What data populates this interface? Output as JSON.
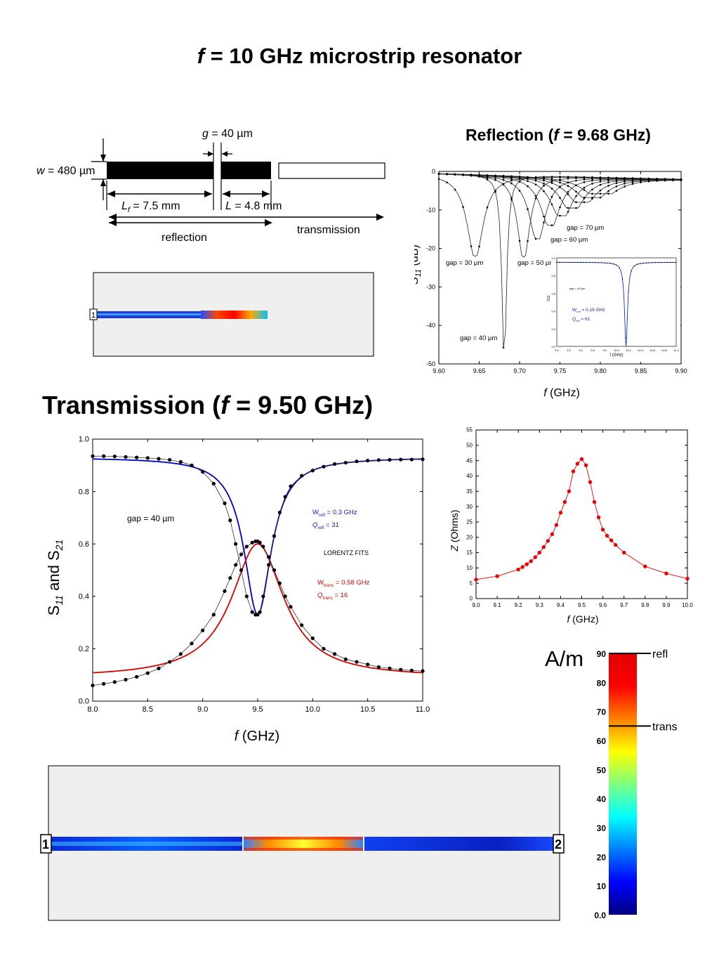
{
  "title": {
    "italic": "f",
    "rest": " = 10 GHz microstrip resonator"
  },
  "reflection_title": {
    "pre": "Reflection (",
    "italic": "f",
    "post": " = 9.68 GHz)"
  },
  "transmission_title": {
    "pre": "Transmission (",
    "italic": "f",
    "post": " = 9.50 GHz)"
  },
  "diagram": {
    "gap_label": {
      "italic": "g",
      "rest": " = 40 µm"
    },
    "width_label": {
      "italic": "w",
      "rest": " = 480 µm"
    },
    "lf_label": {
      "italic": "L",
      "sub": "f",
      "rest": " = 7.5 mm"
    },
    "l_label": {
      "italic": "L",
      "rest": " = 4.8 mm"
    },
    "reflection": "reflection",
    "transmission": "transmission",
    "port1": "1",
    "port2": "2"
  },
  "colorbar": {
    "unit": "A/m",
    "ticks": [
      "90",
      "80",
      "70",
      "60",
      "50",
      "40",
      "30",
      "20",
      "10",
      "0.0"
    ],
    "markers": [
      {
        "label": "refl",
        "value": 90
      },
      {
        "label": "trans",
        "value": 65
      }
    ],
    "colors": [
      "#00007f",
      "#0000ff",
      "#007fff",
      "#00ffff",
      "#7fff7f",
      "#ffff00",
      "#ff7f00",
      "#ff0000",
      "#e00000"
    ]
  },
  "chart_data": [
    {
      "type": "line",
      "title": "Reflection (f = 9.68 GHz)",
      "xlabel": "f (GHz)",
      "ylabel": "S11 (dB)",
      "xlim": [
        9.6,
        9.9
      ],
      "ylim": [
        -50,
        0
      ],
      "xticks": [
        "9.60",
        "9.65",
        "9.70",
        "9.75",
        "9.80",
        "9.85",
        "9.90"
      ],
      "yticks": [
        "0",
        "-10",
        "-20",
        "-30",
        "-40",
        "-50"
      ],
      "series": [
        {
          "name": "gap = 30 µm",
          "f0": 9.645,
          "min": -22,
          "width": 0.012
        },
        {
          "name": "gap = 40 µm",
          "f0": 9.681,
          "min": -48.5,
          "width": 0.0035
        },
        {
          "name": "gap = 50 µm",
          "f0": 9.705,
          "min": -22.3,
          "width": 0.009
        },
        {
          "name": "gap = 60 µm",
          "f0": 9.722,
          "min": -17.5,
          "width": 0.012
        },
        {
          "name": "gap = 70 µm",
          "f0": 9.738,
          "min": -14,
          "width": 0.014
        },
        {
          "name": "",
          "f0": 9.752,
          "min": -11.5,
          "width": 0.016
        },
        {
          "name": "",
          "f0": 9.765,
          "min": -9.5,
          "width": 0.018
        },
        {
          "name": "",
          "f0": 9.777,
          "min": -8,
          "width": 0.02
        },
        {
          "name": "",
          "f0": 9.789,
          "min": -6.8,
          "width": 0.022
        },
        {
          "name": "",
          "f0": 9.8,
          "min": -5.8,
          "width": 0.024
        }
      ],
      "inset": {
        "ylabel": "S11",
        "xlabel": "f (GHz)",
        "note": "gap = 40 µm",
        "w_label": {
          "pre": "W",
          "sub": "refl",
          "post": " = 0.16 GHz"
        },
        "q_label": {
          "pre": "Q",
          "sub": "refl",
          "post": " = 61"
        },
        "xticks": [
          "9.0",
          "9.2",
          "9.4",
          "9.6",
          "9.8",
          "10.0",
          "10.2",
          "10.4",
          "10.6",
          "10.8",
          "11.0"
        ],
        "yticks": [
          "1.0",
          "0.8",
          "0.6",
          "0.4",
          "0.2",
          "0.0"
        ]
      }
    },
    {
      "type": "line",
      "title": "Transmission (f = 9.50 GHz)",
      "xlabel": "f (GHz)",
      "ylabel": "S11 and S21",
      "xlim": [
        8.0,
        11.0
      ],
      "ylim": [
        0.0,
        1.0
      ],
      "xticks": [
        "8.0",
        "8.5",
        "9.0",
        "9.5",
        "10.0",
        "10.5",
        "11.0"
      ],
      "yticks": [
        "0.0",
        "0.2",
        "0.4",
        "0.6",
        "0.8",
        "1.0"
      ],
      "annotations": {
        "gap": "gap = 40 µm",
        "fits": "LORENTZ FITS",
        "w_refl": {
          "pre": "W",
          "sub": "refl",
          "post": " = 0.3 GHz"
        },
        "q_refl": {
          "pre": "Q",
          "sub": "refl",
          "post": " = 31"
        },
        "w_trans": {
          "pre": "W",
          "sub": "trans",
          "post": " = 0.58 GHz"
        },
        "q_trans": {
          "pre": "Q",
          "sub": "trans",
          "post": " = 16"
        }
      },
      "fits": {
        "s11": {
          "color": "#0000cc",
          "base": 0.93,
          "depth": 0.6,
          "f0": 9.5,
          "hw": 0.15
        },
        "s21": {
          "color": "#dd0000",
          "base": 0.09,
          "peak": 0.51,
          "f0": 9.5,
          "hw": 0.29
        }
      },
      "s11_points": {
        "x": [
          8.0,
          8.1,
          8.2,
          8.3,
          8.4,
          8.5,
          8.6,
          8.7,
          8.8,
          8.9,
          9.0,
          9.1,
          9.2,
          9.25,
          9.3,
          9.35,
          9.4,
          9.45,
          9.48,
          9.5,
          9.52,
          9.55,
          9.6,
          9.65,
          9.7,
          9.75,
          9.8,
          9.9,
          10.0,
          10.1,
          10.2,
          10.3,
          10.4,
          10.5,
          10.6,
          10.7,
          10.8,
          10.9,
          11.0
        ],
        "y": [
          0.935,
          0.935,
          0.934,
          0.932,
          0.93,
          0.928,
          0.925,
          0.921,
          0.913,
          0.9,
          0.875,
          0.83,
          0.755,
          0.69,
          0.6,
          0.5,
          0.4,
          0.34,
          0.33,
          0.33,
          0.34,
          0.4,
          0.52,
          0.63,
          0.72,
          0.78,
          0.82,
          0.86,
          0.88,
          0.895,
          0.905,
          0.91,
          0.915,
          0.918,
          0.92,
          0.921,
          0.922,
          0.922,
          0.923
        ]
      },
      "s21_points": {
        "x": [
          8.0,
          8.1,
          8.2,
          8.3,
          8.4,
          8.5,
          8.6,
          8.7,
          8.8,
          8.9,
          9.0,
          9.1,
          9.2,
          9.25,
          9.3,
          9.35,
          9.4,
          9.45,
          9.48,
          9.5,
          9.52,
          9.55,
          9.6,
          9.65,
          9.7,
          9.75,
          9.8,
          9.9,
          10.0,
          10.1,
          10.2,
          10.3,
          10.4,
          10.5,
          10.6,
          10.7,
          10.8,
          10.9,
          11.0
        ],
        "y": [
          0.06,
          0.066,
          0.073,
          0.082,
          0.093,
          0.107,
          0.125,
          0.15,
          0.18,
          0.22,
          0.27,
          0.33,
          0.42,
          0.47,
          0.52,
          0.56,
          0.59,
          0.605,
          0.61,
          0.61,
          0.605,
          0.59,
          0.55,
          0.5,
          0.45,
          0.4,
          0.36,
          0.29,
          0.24,
          0.2,
          0.18,
          0.16,
          0.15,
          0.14,
          0.13,
          0.125,
          0.12,
          0.117,
          0.115
        ]
      }
    },
    {
      "type": "line",
      "xlabel": "f (GHz)",
      "ylabel": "Z (Ohms)",
      "xlim": [
        9.0,
        10.0
      ],
      "ylim": [
        0,
        55
      ],
      "xticks": [
        "9.0",
        "9.1",
        "9.2",
        "9.3",
        "9.4",
        "9.5",
        "9.6",
        "9.7",
        "9.8",
        "9.9",
        "10.0"
      ],
      "yticks": [
        "0",
        "5",
        "10",
        "15",
        "20",
        "25",
        "30",
        "35",
        "40",
        "45",
        "50",
        "55"
      ],
      "x": [
        9.0,
        9.1,
        9.2,
        9.22,
        9.24,
        9.26,
        9.28,
        9.3,
        9.32,
        9.34,
        9.36,
        9.38,
        9.4,
        9.42,
        9.44,
        9.46,
        9.48,
        9.5,
        9.52,
        9.54,
        9.56,
        9.58,
        9.6,
        9.62,
        9.64,
        9.66,
        9.7,
        9.8,
        9.9,
        10.0
      ],
      "y": [
        6.2,
        7.3,
        9.5,
        10.3,
        11.2,
        12.2,
        13.5,
        15,
        16.8,
        18.8,
        21,
        24,
        28,
        31.5,
        35,
        41.5,
        44,
        45.5,
        43.5,
        38,
        31.5,
        26.5,
        22.5,
        20.5,
        19,
        17.5,
        15,
        10.5,
        8.2,
        6.5
      ],
      "color": "#ee0000"
    }
  ]
}
